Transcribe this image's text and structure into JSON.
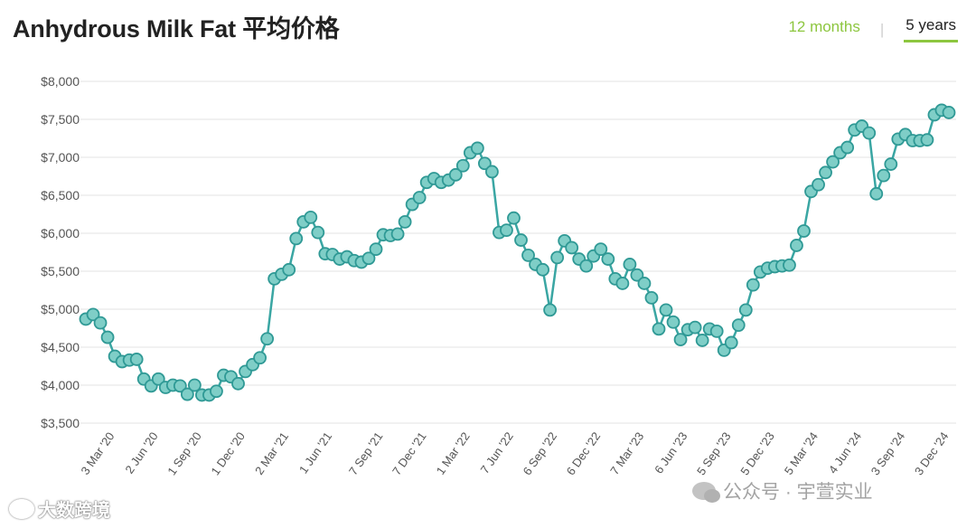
{
  "title": "Anhydrous Milk Fat 平均价格",
  "tabs": {
    "months_12": "12 months",
    "years_5": "5 years",
    "active": "5 years"
  },
  "watermarks": {
    "left": "大数跨境",
    "right": "公众号 · 宇萱实业"
  },
  "colors": {
    "line": "#3aa6a3",
    "point_fill": "#7fcec7",
    "point_stroke": "#2f9995",
    "grid": "#e3e3e3",
    "accent": "#8dc63f"
  },
  "chart_data": {
    "type": "line",
    "title": "Anhydrous Milk Fat 平均价格",
    "xlabel": "",
    "ylabel": "",
    "ylim": [
      3500,
      8000
    ],
    "y_ticks": [
      "$3,500",
      "$4,000",
      "$4,500",
      "$5,000",
      "$5,500",
      "$6,000",
      "$6,500",
      "$7,000",
      "$7,500",
      "$8,000"
    ],
    "y_tick_values": [
      3500,
      4000,
      4500,
      5000,
      5500,
      6000,
      6500,
      7000,
      7500,
      8000
    ],
    "x_ticks": [
      {
        "label": "3 Mar '20",
        "index": 3
      },
      {
        "label": "2 Jun '20",
        "index": 9
      },
      {
        "label": "1 Sep '20",
        "index": 15
      },
      {
        "label": "1 Dec '20",
        "index": 21
      },
      {
        "label": "2 Mar '21",
        "index": 27
      },
      {
        "label": "1 Jun '21",
        "index": 33
      },
      {
        "label": "7 Sep '21",
        "index": 40
      },
      {
        "label": "7 Dec '21",
        "index": 46
      },
      {
        "label": "1 Mar '22",
        "index": 52
      },
      {
        "label": "7 Jun '22",
        "index": 58
      },
      {
        "label": "6 Sep '22",
        "index": 64
      },
      {
        "label": "6 Dec '22",
        "index": 70
      },
      {
        "label": "7 Mar '23",
        "index": 76
      },
      {
        "label": "6 Jun '23",
        "index": 82
      },
      {
        "label": "5 Sep '23",
        "index": 88
      },
      {
        "label": "5 Dec '23",
        "index": 94
      },
      {
        "label": "5 Mar '24",
        "index": 100
      },
      {
        "label": "4 Jun '24",
        "index": 106
      },
      {
        "label": "3 Sep '24",
        "index": 112
      },
      {
        "label": "3 Dec '24",
        "index": 118
      }
    ],
    "values": [
      4870,
      4930,
      4820,
      4630,
      4380,
      4310,
      4330,
      4340,
      4080,
      3990,
      4080,
      3970,
      4000,
      3990,
      3880,
      4000,
      3870,
      3870,
      3920,
      4130,
      4110,
      4020,
      4180,
      4270,
      4360,
      4610,
      5400,
      5460,
      5520,
      5930,
      6150,
      6210,
      6010,
      5730,
      5720,
      5660,
      5690,
      5640,
      5620,
      5670,
      5790,
      5980,
      5970,
      5990,
      6150,
      6380,
      6470,
      6670,
      6720,
      6670,
      6700,
      6770,
      6890,
      7060,
      7120,
      6920,
      6810,
      6010,
      6040,
      6200,
      5910,
      5710,
      5590,
      5520,
      4990,
      5680,
      5900,
      5810,
      5660,
      5570,
      5700,
      5790,
      5660,
      5400,
      5340,
      5590,
      5450,
      5340,
      5150,
      4740,
      4990,
      4830,
      4600,
      4730,
      4760,
      4590,
      4740,
      4710,
      4460,
      4560,
      4790,
      4990,
      5320,
      5490,
      5540,
      5560,
      5570,
      5580,
      5840,
      6030,
      6550,
      6640,
      6800,
      6940,
      7060,
      7130,
      7360,
      7410,
      7320,
      6520,
      6760,
      6910,
      7240,
      7300,
      7220,
      7220,
      7230,
      7560,
      7620,
      7590
    ]
  }
}
